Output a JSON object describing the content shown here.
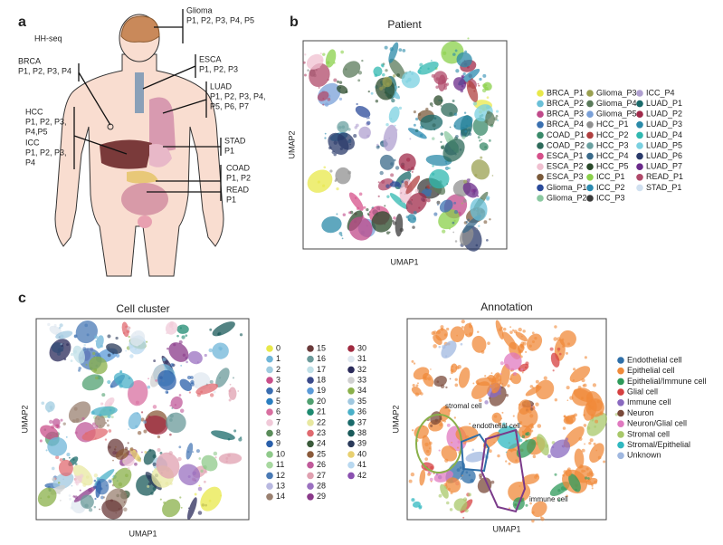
{
  "panel_a": {
    "label": "a",
    "subtitle": "HH-seq",
    "organs": [
      {
        "name": "Glioma",
        "lines": [
          "P1, P2, P3, P4, P5"
        ]
      },
      {
        "name": "BRCA",
        "lines": [
          "P1, P2, P3, P4"
        ]
      },
      {
        "name": "ESCA",
        "lines": [
          "P1, P2, P3"
        ]
      },
      {
        "name": "LUAD",
        "lines": [
          "P1, P2, P3, P4,",
          "P5, P6, P7"
        ]
      },
      {
        "name": "HCC",
        "lines": [
          "P1, P2, P3,",
          "P4,P5"
        ]
      },
      {
        "name": "ICC",
        "lines": [
          "P1, P2, P3,",
          "P4"
        ]
      },
      {
        "name": "STAD",
        "lines": [
          "P1"
        ]
      },
      {
        "name": "COAD",
        "lines": [
          "P1, P2"
        ]
      },
      {
        "name": "READ",
        "lines": [
          "P1"
        ]
      }
    ]
  },
  "panel_b": {
    "label": "b",
    "title": "Patient",
    "x_label": "UMAP1",
    "y_label": "UMAP2",
    "legend": [
      {
        "name": "BRCA_P1",
        "color": "#e8e84a"
      },
      {
        "name": "BRCA_P2",
        "color": "#6ac0d8"
      },
      {
        "name": "BRCA_P3",
        "color": "#c04a8a"
      },
      {
        "name": "BRCA_P4",
        "color": "#3a70b0"
      },
      {
        "name": "COAD_P1",
        "color": "#3a8a6a"
      },
      {
        "name": "COAD_P2",
        "color": "#2e6a5a"
      },
      {
        "name": "ESCA_P1",
        "color": "#d6508a"
      },
      {
        "name": "ESCA_P2",
        "color": "#f0c0d0"
      },
      {
        "name": "ESCA_P3",
        "color": "#7a5a3a"
      },
      {
        "name": "Glioma_P1",
        "color": "#2a4a9a"
      },
      {
        "name": "Glioma_P2",
        "color": "#8ac8a0"
      },
      {
        "name": "Glioma_P3",
        "color": "#9aa050"
      },
      {
        "name": "Glioma_P4",
        "color": "#5a7a5a"
      },
      {
        "name": "Glioma_P5",
        "color": "#7aa0d8"
      },
      {
        "name": "HCC_P1",
        "color": "#909090"
      },
      {
        "name": "HCC_P2",
        "color": "#b04040"
      },
      {
        "name": "HCC_P3",
        "color": "#6aa0a0"
      },
      {
        "name": "HCC_P4",
        "color": "#3a6a8a"
      },
      {
        "name": "HCC_P5",
        "color": "#2a4a2a"
      },
      {
        "name": "ICC_P1",
        "color": "#8ad04a"
      },
      {
        "name": "ICC_P2",
        "color": "#2a8ab0"
      },
      {
        "name": "ICC_P3",
        "color": "#3a3a3a"
      },
      {
        "name": "ICC_P4",
        "color": "#b0a0d0"
      },
      {
        "name": "LUAD_P1",
        "color": "#1a6a6a"
      },
      {
        "name": "LUAD_P2",
        "color": "#a02a4a"
      },
      {
        "name": "LUAD_P3",
        "color": "#2a8aa8"
      },
      {
        "name": "LUAD_P4",
        "color": "#30b8b0"
      },
      {
        "name": "LUAD_P5",
        "color": "#7ad0e0"
      },
      {
        "name": "LUAD_P6",
        "color": "#2a3a6a"
      },
      {
        "name": "LUAD_P7",
        "color": "#6a2a8a"
      },
      {
        "name": "READ_P1",
        "color": "#b04a6a"
      },
      {
        "name": "STAD_P1",
        "color": "#d0e0f0"
      }
    ]
  },
  "panel_c_cluster": {
    "label": "c",
    "title": "Cell cluster",
    "x_label": "UMAP1",
    "y_label": "UMAP2",
    "legend": [
      {
        "name": "0",
        "color": "#e8e84a"
      },
      {
        "name": "1",
        "color": "#6fb6d8"
      },
      {
        "name": "2",
        "color": "#a0cce0"
      },
      {
        "name": "3",
        "color": "#c94f8a"
      },
      {
        "name": "4",
        "color": "#3a6db0"
      },
      {
        "name": "5",
        "color": "#2a7ec0"
      },
      {
        "name": "6",
        "color": "#d86fa0"
      },
      {
        "name": "7",
        "color": "#f0c9d8"
      },
      {
        "name": "8",
        "color": "#5a8c5a"
      },
      {
        "name": "9",
        "color": "#2a5faa"
      },
      {
        "name": "10",
        "color": "#8fc98a"
      },
      {
        "name": "11",
        "color": "#a8d8a0"
      },
      {
        "name": "12",
        "color": "#4a7ab5"
      },
      {
        "name": "13",
        "color": "#b8b8e0"
      },
      {
        "name": "14",
        "color": "#9a8070"
      },
      {
        "name": "15",
        "color": "#6a3a3a"
      },
      {
        "name": "16",
        "color": "#6a9a9a"
      },
      {
        "name": "17",
        "color": "#c0e0e8"
      },
      {
        "name": "18",
        "color": "#3a4a8a"
      },
      {
        "name": "19",
        "color": "#5a9ad8"
      },
      {
        "name": "20",
        "color": "#50a070"
      },
      {
        "name": "21",
        "color": "#1e8a70"
      },
      {
        "name": "22",
        "color": "#e8e8a0"
      },
      {
        "name": "23",
        "color": "#e06a70"
      },
      {
        "name": "24",
        "color": "#3a5a3a"
      },
      {
        "name": "25",
        "color": "#8a5a3a"
      },
      {
        "name": "26",
        "color": "#c05a9a"
      },
      {
        "name": "27",
        "color": "#e0a0b0"
      },
      {
        "name": "28",
        "color": "#9a70c0"
      },
      {
        "name": "29",
        "color": "#8a3a8a"
      },
      {
        "name": "30",
        "color": "#a02a40"
      },
      {
        "name": "31",
        "color": "#e0e8f0"
      },
      {
        "name": "32",
        "color": "#2a2a5a"
      },
      {
        "name": "33",
        "color": "#d0d0d0"
      },
      {
        "name": "34",
        "color": "#8ab04a"
      },
      {
        "name": "35",
        "color": "#a0c8e0"
      },
      {
        "name": "36",
        "color": "#4ab0c8"
      },
      {
        "name": "37",
        "color": "#1a6a6a"
      },
      {
        "name": "38",
        "color": "#1a5a5a"
      },
      {
        "name": "39",
        "color": "#2a3a5a"
      },
      {
        "name": "40",
        "color": "#e8d070"
      },
      {
        "name": "41",
        "color": "#b8d8f0"
      },
      {
        "name": "42",
        "color": "#8a50b0"
      }
    ]
  },
  "panel_c_annotation": {
    "title": "Annotation",
    "x_label": "UMAP1",
    "y_label": "UMAP2",
    "legend": [
      {
        "name": "Endothelial cell",
        "color": "#2f6fa8"
      },
      {
        "name": "Epithelial cell",
        "color": "#f08a3a"
      },
      {
        "name": "Epithelial/Immune cell",
        "color": "#2e9a5a"
      },
      {
        "name": "Glial cell",
        "color": "#d64040"
      },
      {
        "name": "Immune cell",
        "color": "#8a6ac0"
      },
      {
        "name": "Neuron",
        "color": "#7a4a3a"
      },
      {
        "name": "Neuron/Glial cell",
        "color": "#e07ac0"
      },
      {
        "name": "Stromal cell",
        "color": "#a8c86a"
      },
      {
        "name": "Stromal/Epithelial",
        "color": "#30b8c0"
      },
      {
        "name": "Unknown",
        "color": "#a0b8e0"
      }
    ],
    "annotations": [
      "stromal cell",
      "endothelial cell",
      "immune cell"
    ]
  }
}
